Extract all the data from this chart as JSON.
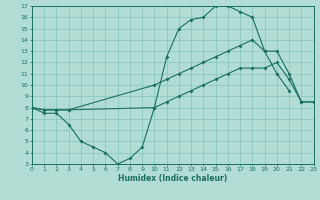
{
  "xlabel": "Humidex (Indice chaleur)",
  "bg_color": "#b2ddd4",
  "grid_color": "#85c4b8",
  "line_color": "#1a7060",
  "xlim": [
    0,
    23
  ],
  "ylim": [
    3,
    17
  ],
  "xticks": [
    0,
    1,
    2,
    3,
    4,
    5,
    6,
    7,
    8,
    9,
    10,
    11,
    12,
    13,
    14,
    15,
    16,
    17,
    18,
    19,
    20,
    21,
    22,
    23
  ],
  "yticks": [
    3,
    4,
    5,
    6,
    7,
    8,
    9,
    10,
    11,
    12,
    13,
    14,
    15,
    16,
    17
  ],
  "line1_x": [
    0,
    1,
    2,
    3,
    4,
    5,
    6,
    7,
    8,
    9,
    10,
    11,
    12,
    13,
    14,
    15,
    16,
    17,
    18,
    19,
    20,
    21
  ],
  "line1_y": [
    8.0,
    7.5,
    7.5,
    6.5,
    5.0,
    4.5,
    4.0,
    3.0,
    3.5,
    4.5,
    8.0,
    12.5,
    15.0,
    15.8,
    16.0,
    17.0,
    17.0,
    16.5,
    16.0,
    13.0,
    11.0,
    9.5
  ],
  "line2_x": [
    0,
    1,
    2,
    3,
    10,
    11,
    12,
    13,
    14,
    15,
    16,
    17,
    18,
    19,
    20,
    21,
    22,
    23
  ],
  "line2_y": [
    8.0,
    7.8,
    7.8,
    7.8,
    10.0,
    10.5,
    11.0,
    11.5,
    12.0,
    12.5,
    13.0,
    13.5,
    14.0,
    13.0,
    13.0,
    11.0,
    8.5,
    8.5
  ],
  "line3_x": [
    0,
    1,
    2,
    3,
    10,
    11,
    12,
    13,
    14,
    15,
    16,
    17,
    18,
    19,
    20,
    21,
    22,
    23
  ],
  "line3_y": [
    8.0,
    7.8,
    7.8,
    7.8,
    8.0,
    8.5,
    9.0,
    9.5,
    10.0,
    10.5,
    11.0,
    11.5,
    11.5,
    11.5,
    12.0,
    10.5,
    8.5,
    8.5
  ]
}
